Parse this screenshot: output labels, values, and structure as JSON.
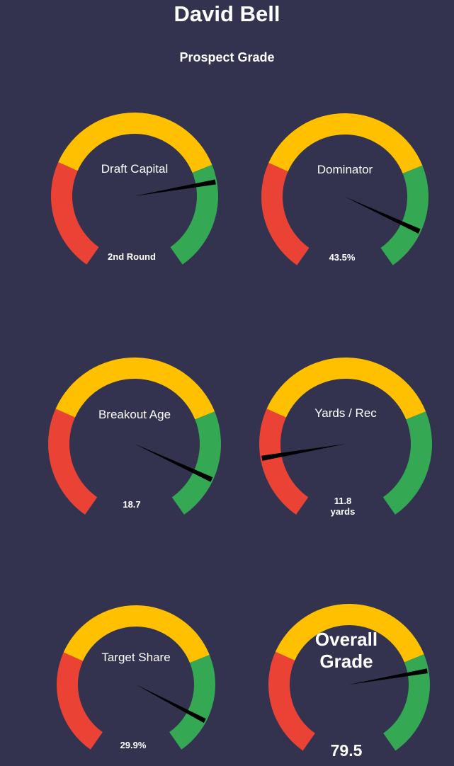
{
  "title": "David Bell",
  "subtitle": "Prospect Grade",
  "colors": {
    "background": "#33324f",
    "red": "#ea4335",
    "yellow": "#ffc000",
    "green": "#34a853",
    "needle": "#000000"
  },
  "chart_data": {
    "type": "gauge",
    "zones": [
      "red",
      "yellow",
      "green"
    ],
    "gauges": [
      {
        "label": "Draft Capital",
        "value_text": [
          "2nd Round"
        ],
        "needle_fraction": 0.77
      },
      {
        "label": "Dominator",
        "value_text": [
          "43.5%"
        ],
        "needle_fraction": 0.89
      },
      {
        "label": "Breakout Age",
        "value_text": [
          "18.7"
        ],
        "needle_fraction": 0.89
      },
      {
        "label": "Yards / Rec",
        "value_text": [
          "11.8",
          "yards"
        ],
        "needle_fraction": 0.15
      },
      {
        "label": "Target Share",
        "value_text": [
          "29.9%"
        ],
        "needle_fraction": 0.9
      },
      {
        "label": "Overall Grade",
        "value_text": [
          "79.5"
        ],
        "needle_fraction": 0.77
      }
    ]
  }
}
